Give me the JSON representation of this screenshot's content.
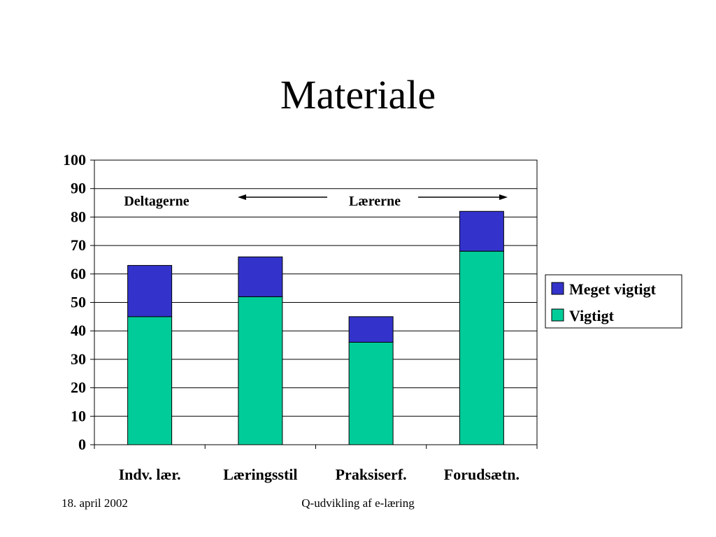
{
  "slide": {
    "title": "Materiale",
    "footer_date": "18. april 2002",
    "footer_center": "Q-udvikling af e-læring"
  },
  "chart_data": {
    "type": "bar",
    "stacked": true,
    "categories": [
      "Indv. lær.",
      "Læringsstil",
      "Praksiserf.",
      "Forudsætn."
    ],
    "series": [
      {
        "name": "Vigtigt",
        "values": [
          45,
          52,
          36,
          68
        ],
        "color": "#00CC99"
      },
      {
        "name": "Meget vigtigt",
        "values": [
          18,
          14,
          9,
          14
        ],
        "color": "#3333CC"
      }
    ],
    "legend_order": [
      "Meget vigtigt",
      "Vigtigt"
    ],
    "ylim": [
      0,
      100
    ],
    "yticks": [
      0,
      10,
      20,
      30,
      40,
      50,
      60,
      70,
      80,
      90,
      100
    ],
    "grid": true,
    "legend_position": "right",
    "annotations": {
      "left_label": "Deltagerne",
      "right_label": "Lærerne"
    }
  }
}
